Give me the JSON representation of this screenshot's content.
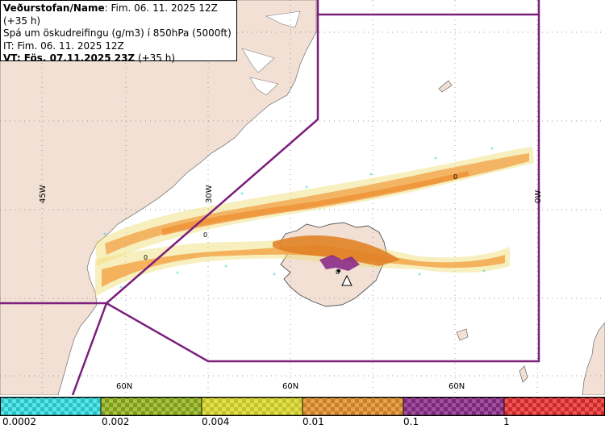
{
  "header": {
    "line1_bold": "Veðurstofan/Name",
    "line1_rest": ": Fim. 06. 11. 2025 12Z (+35 h)",
    "line2": "Spá um öskudreifingu (g/m3) í 850hPa (5000ft)",
    "line3": "IT: Fim. 06. 11. 2025 12Z",
    "line4_bold": "VT: Fös. 07.11.2025 23Z",
    "line4_rest": " (+35 h)"
  },
  "map": {
    "lon_labels": [
      "45W",
      "30W",
      "0W"
    ],
    "lat_labels": [
      "60N",
      "60N",
      "60N"
    ],
    "contour_labels": [
      "0",
      "0",
      "0",
      "0"
    ],
    "colors": {
      "land": "#f2e0d4",
      "sea": "#ffffff",
      "boundary": "#7b1f7b",
      "grid": "#7a7a7a"
    }
  },
  "colorbar": {
    "labels": [
      "0.0002",
      "0.002",
      "0.004",
      "0.01",
      "0.1",
      "1"
    ],
    "segments": [
      {
        "color": "#29c2c8",
        "alt": "#5ee6e6"
      },
      {
        "color": "#7e9a25",
        "alt": "#a7c43a"
      },
      {
        "color": "#c3c22b",
        "alt": "#e2df4c"
      },
      {
        "color": "#c97e24",
        "alt": "#e6a452"
      },
      {
        "color": "#7b2a7b",
        "alt": "#a2509c"
      },
      {
        "color": "#cc2a2a",
        "alt": "#ee5656"
      }
    ]
  }
}
